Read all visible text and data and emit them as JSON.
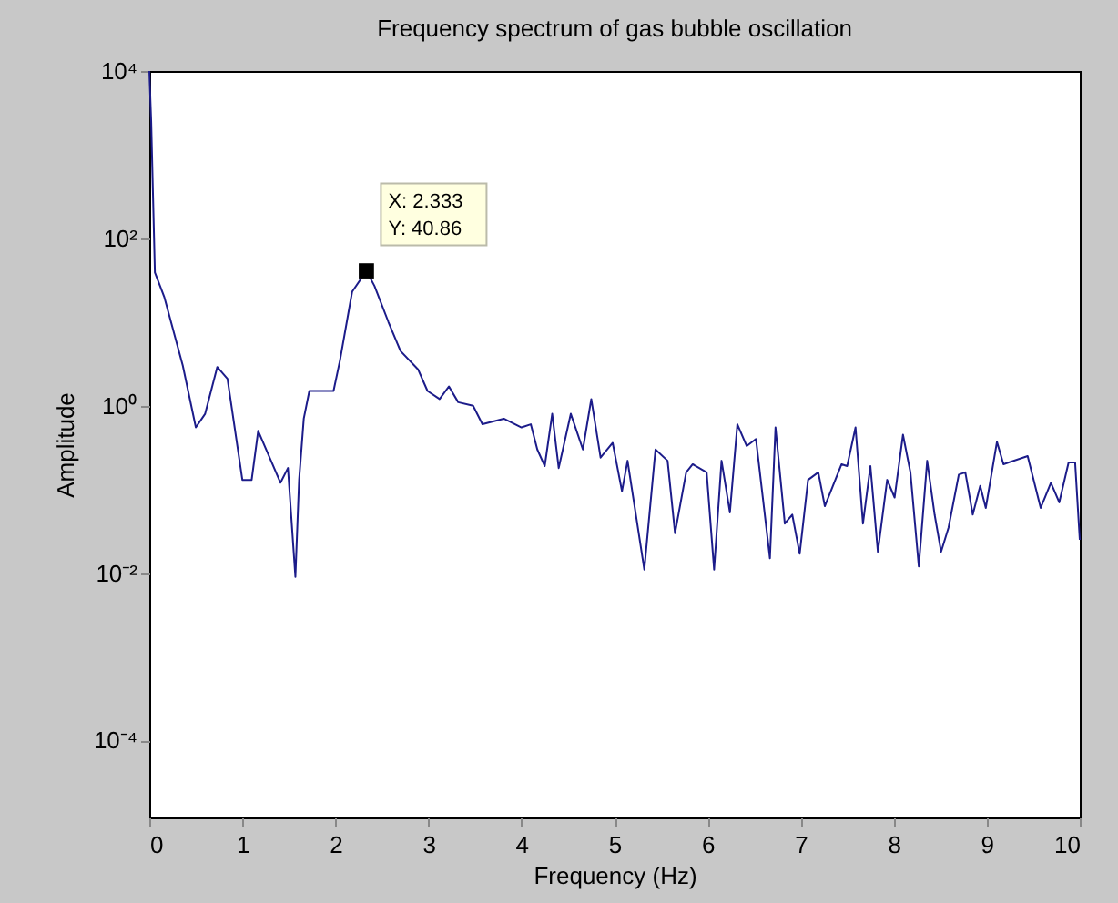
{
  "chart_data": {
    "type": "line",
    "title": "Frequency spectrum of gas bubble oscillation",
    "xlabel": "Frequency (Hz)",
    "ylabel": "Amplitude",
    "log": "y",
    "grid": false,
    "legend": false,
    "xlim": [
      0,
      10
    ],
    "xticks": [
      0,
      1,
      2,
      3,
      4,
      5,
      6,
      7,
      8,
      9,
      10
    ],
    "ylim": [
      1.2e-05,
      10000
    ],
    "yticks": [
      {
        "value": 0.0001,
        "label": "10⁻⁴"
      },
      {
        "value": 0.01,
        "label": "10⁻²"
      },
      {
        "value": 1,
        "label": "10⁰"
      },
      {
        "value": 100,
        "label": "10²"
      },
      {
        "value": 10000,
        "label": "10⁴"
      }
    ],
    "annotations": [
      {
        "text": "X: 2.333\nY: 40.86",
        "x": 2.333,
        "y": 40.86
      }
    ],
    "series": [
      {
        "color": "#1c1c8a",
        "x": [
          0,
          0.02,
          0.06,
          0.16,
          0.36,
          0.5,
          0.6,
          0.73,
          0.84,
          1.0,
          1.1,
          1.17,
          1.41,
          1.49,
          1.57,
          1.61,
          1.66,
          1.72,
          1.98,
          2.05,
          2.18,
          2.333,
          2.42,
          2.57,
          2.7,
          2.89,
          2.99,
          3.12,
          3.22,
          3.32,
          3.48,
          3.58,
          3.81,
          4.0,
          4.1,
          4.17,
          4.25,
          4.33,
          4.4,
          4.53,
          4.66,
          4.75,
          4.85,
          4.98,
          5.08,
          5.14,
          5.32,
          5.44,
          5.57,
          5.65,
          5.77,
          5.84,
          5.99,
          6.07,
          6.15,
          6.24,
          6.32,
          6.42,
          6.52,
          6.67,
          6.73,
          6.83,
          6.91,
          6.99,
          7.08,
          7.19,
          7.26,
          7.44,
          7.5,
          7.59,
          7.67,
          7.75,
          7.83,
          7.93,
          8.01,
          8.1,
          8.18,
          8.27,
          8.36,
          8.44,
          8.51,
          8.59,
          8.7,
          8.77,
          8.85,
          8.93,
          8.99,
          9.11,
          9.18,
          9.44,
          9.58,
          9.69,
          9.78,
          9.88,
          9.95,
          10.0
        ],
        "values": [
          10000,
          2500,
          39,
          20,
          3,
          0.55,
          0.8,
          2.9,
          2.1,
          0.13,
          0.13,
          0.5,
          0.12,
          0.18,
          0.009,
          0.13,
          0.7,
          1.5,
          1.5,
          3.5,
          23,
          40.86,
          27,
          10,
          4.5,
          2.7,
          1.5,
          1.2,
          1.7,
          1.1,
          1,
          0.6,
          0.7,
          0.55,
          0.6,
          0.3,
          0.19,
          0.8,
          0.18,
          0.8,
          0.3,
          1.2,
          0.24,
          0.36,
          0.095,
          0.22,
          0.011,
          0.3,
          0.22,
          0.03,
          0.16,
          0.2,
          0.16,
          0.011,
          0.22,
          0.053,
          0.6,
          0.33,
          0.4,
          0.015,
          0.55,
          0.039,
          0.05,
          0.017,
          0.13,
          0.16,
          0.063,
          0.2,
          0.19,
          0.55,
          0.039,
          0.19,
          0.018,
          0.13,
          0.08,
          0.45,
          0.16,
          0.012,
          0.22,
          0.05,
          0.018,
          0.035,
          0.15,
          0.16,
          0.05,
          0.11,
          0.06,
          0.37,
          0.2,
          0.25,
          0.06,
          0.12,
          0.07,
          0.21,
          0.21,
          0.025
        ]
      }
    ]
  }
}
